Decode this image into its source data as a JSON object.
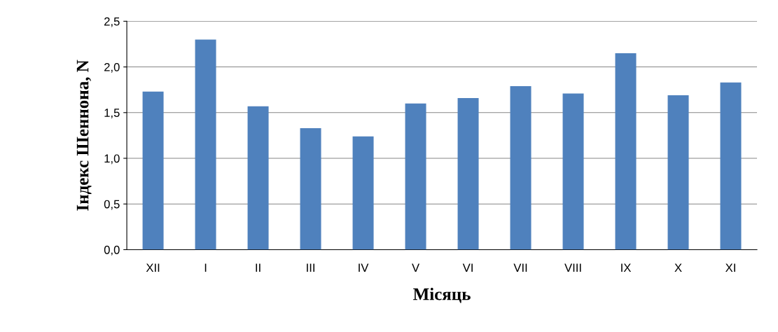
{
  "chart_data": {
    "type": "bar",
    "xlabel": "Місяць",
    "ylabel": "Індекс Шеннона, N",
    "categories": [
      "XII",
      "I",
      "II",
      "III",
      "IV",
      "V",
      "VI",
      "VII",
      "VIII",
      "IX",
      "X",
      "XI"
    ],
    "values": [
      1.73,
      2.3,
      1.57,
      1.33,
      1.24,
      1.6,
      1.66,
      1.79,
      1.71,
      2.15,
      1.69,
      1.83
    ],
    "color": "#4f81bd",
    "ylim": [
      0,
      2.5
    ],
    "yticks": [
      {
        "value": 0,
        "label": "0,0"
      },
      {
        "value": 0.5,
        "label": "0,5"
      },
      {
        "value": 1,
        "label": "1,0"
      },
      {
        "value": 1.5,
        "label": "1,5"
      },
      {
        "value": 2,
        "label": "2,0"
      },
      {
        "value": 2.5,
        "label": "2,5"
      }
    ],
    "grid": "y",
    "legend": false
  }
}
